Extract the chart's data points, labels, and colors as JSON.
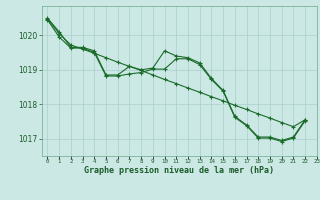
{
  "title": "Graphe pression niveau de la mer (hPa)",
  "bg_color": "#cce8e4",
  "grid_color": "#aacfcc",
  "line_color": "#1a6b2a",
  "xlim": [
    -0.5,
    23
  ],
  "ylim": [
    1016.5,
    1020.85
  ],
  "yticks": [
    1017,
    1018,
    1019,
    1020
  ],
  "xticks": [
    0,
    1,
    2,
    3,
    4,
    5,
    6,
    7,
    8,
    9,
    10,
    11,
    12,
    13,
    14,
    15,
    16,
    17,
    18,
    19,
    20,
    21,
    22,
    23
  ],
  "s1": [
    1020.5,
    1020.1,
    1019.65,
    1019.65,
    1019.55,
    1018.85,
    1018.85,
    1019.1,
    1019.0,
    1019.05,
    1019.55,
    1019.4,
    1019.35,
    1019.2,
    1018.75,
    1018.4,
    1017.65,
    1017.4,
    1017.05,
    1017.05,
    1016.95,
    1017.05,
    1017.55,
    null
  ],
  "s2": [
    1020.48,
    1020.05,
    1019.72,
    1019.6,
    1019.48,
    1019.35,
    1019.22,
    1019.1,
    1018.98,
    1018.85,
    1018.72,
    1018.6,
    1018.47,
    1018.35,
    1018.22,
    1018.1,
    1017.97,
    1017.85,
    1017.72,
    1017.6,
    1017.47,
    1017.35,
    1017.55,
    null
  ],
  "s3": [
    1020.45,
    1019.95,
    1019.63,
    1019.63,
    1019.5,
    1018.82,
    1018.82,
    1018.88,
    1018.92,
    1019.02,
    1019.02,
    1019.32,
    1019.32,
    1019.15,
    1018.72,
    1018.38,
    1017.62,
    1017.38,
    1017.02,
    1017.02,
    1016.92,
    1017.02,
    1017.52,
    null
  ]
}
